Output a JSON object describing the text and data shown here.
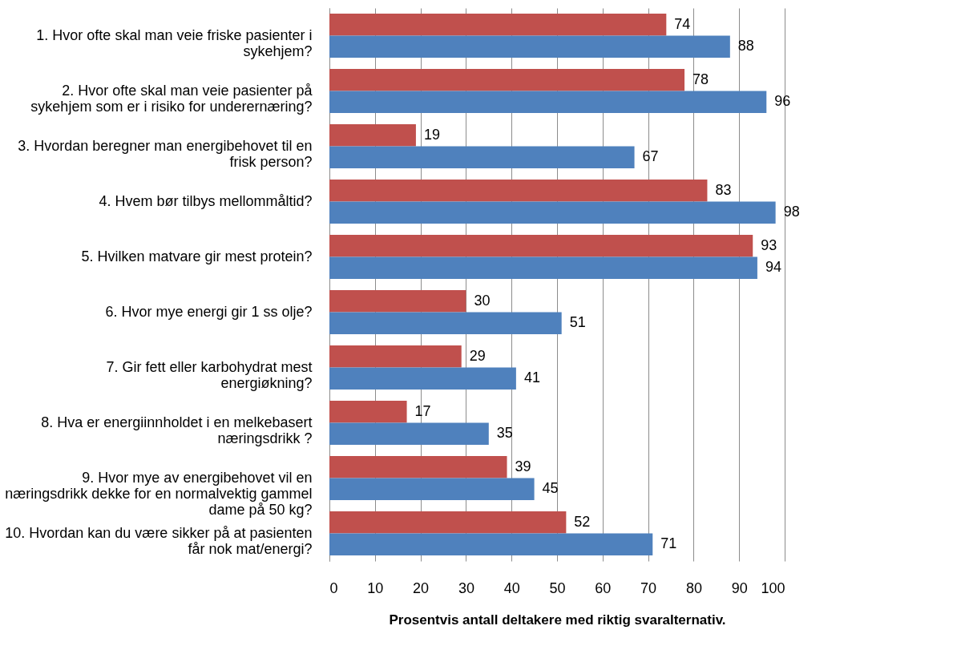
{
  "chart_data": {
    "type": "bar",
    "orientation": "horizontal",
    "xlabel": "Prosentvis antall deltakere med riktig svaralternativ.",
    "categories": [
      "1. Hvor ofte skal man veie friske pasienter i sykehjem?",
      "2. Hvor ofte skal man veie pasienter på sykehjem som er i risiko for underernæring?",
      "3. Hvordan beregner man energibehovet til en frisk person?",
      "4. Hvem bør tilbys mellommåltid?",
      "5. Hvilken matvare gir mest protein?",
      "6. Hvor mye energi gir 1 ss olje?",
      "7. Gir fett eller karbohydrat mest energiøkning?",
      "8. Hva er energiinnholdet i en melkebasert næringsdrikk ?",
      "9. Hvor mye av energibehovet vil en næringsdrikk dekke for en normalvektig gammel dame på 50 kg?",
      "10. Hvordan kan du være sikker på at pasienten får nok mat/energi?"
    ],
    "series": [
      {
        "color": "#c0504d",
        "values": [
          74,
          78,
          19,
          83,
          93,
          30,
          29,
          17,
          39,
          52
        ]
      },
      {
        "color": "#4f81bd",
        "values": [
          88,
          96,
          67,
          98,
          94,
          51,
          41,
          35,
          45,
          71
        ]
      }
    ],
    "xlim": [
      0,
      100
    ],
    "xticks": [
      0,
      10,
      20,
      30,
      40,
      50,
      60,
      70,
      80,
      90,
      100
    ],
    "grid": "x",
    "legend": false,
    "data_labels": true
  }
}
